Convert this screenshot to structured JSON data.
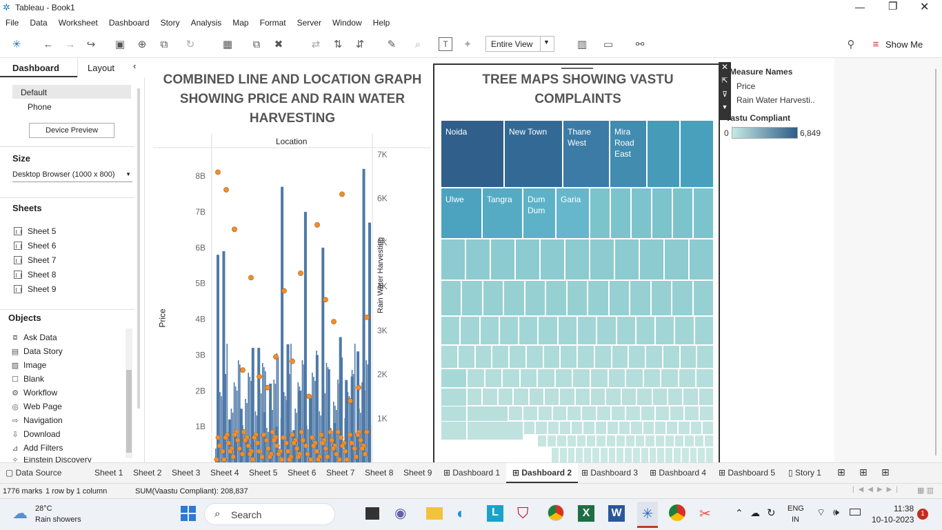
{
  "window": {
    "title": "Tableau - Book1"
  },
  "menu": [
    "File",
    "Data",
    "Worksheet",
    "Dashboard",
    "Story",
    "Analysis",
    "Map",
    "Format",
    "Server",
    "Window",
    "Help"
  ],
  "toolbar": {
    "view_mode": "Entire View",
    "show_me": "Show Me"
  },
  "left_pane": {
    "tabs": [
      "Dashboard",
      "Layout"
    ],
    "device_options": [
      "Default",
      "Phone"
    ],
    "device_preview_button": "Device Preview",
    "size_heading": "Size",
    "size_value": "Desktop Browser (1000 x 800)",
    "sheets_heading": "Sheets",
    "sheets": [
      "Sheet 5",
      "Sheet 6",
      "Sheet 7",
      "Sheet 8",
      "Sheet 9"
    ],
    "objects_heading": "Objects",
    "objects": [
      "Ask Data",
      "Data Story",
      "Image",
      "Blank",
      "Workflow",
      "Web Page",
      "Navigation",
      "Download",
      "Add Filters",
      "Einstein Discovery"
    ]
  },
  "chart_left": {
    "title": "COMBINED LINE AND LOCATION GRAPH SHOWING PRICE AND RAIN WATER HARVESTING",
    "column_header": "Location",
    "y_left_label": "Price",
    "y_right_label": "Rain Water Harvesting",
    "y_left_ticks": [
      "8B",
      "7B",
      "6B",
      "5B",
      "4B",
      "3B",
      "2B",
      "1B"
    ],
    "y_right_ticks": [
      "7K",
      "6K",
      "5K",
      "4K",
      "3K",
      "2K",
      "1K"
    ]
  },
  "chart_data": {
    "type": "bar",
    "title": "COMBINED LINE AND LOCATION GRAPH SHOWING PRICE AND RAIN WATER HARVESTING",
    "xlabel": "Location",
    "ylabel": "Price",
    "y2label": "Rain Water Harvesting",
    "ylim": [
      0,
      8600000000
    ],
    "y2lim": [
      0,
      7000
    ],
    "series": [
      {
        "name": "Price",
        "type": "bar",
        "color": "#4e79a7",
        "values": [
          5.8,
          5.9,
          1.2,
          0.8,
          1.5,
          0.7,
          3.2,
          3.2,
          1.4,
          2.2,
          1.0,
          7.7,
          3.3,
          0.9,
          2.0,
          7.0,
          1.8,
          3.0,
          6.0,
          2.6,
          1.1,
          3.5,
          2.3,
          2.4,
          3.1,
          8.2,
          6.7
        ]
      },
      {
        "name": "Rain Water Harvesting",
        "type": "scatter",
        "color": "#f28e2b",
        "values": [
          6600,
          6100,
          1500,
          2400,
          2100,
          3300,
          3200,
          4300,
          1700,
          5300,
          1700,
          3700,
          2300,
          1950,
          6200,
          1400,
          5400,
          3900,
          4200
        ]
      }
    ]
  },
  "chart_right": {
    "title": "TREE MAPS SHOWING VASTU COMPLAINTS",
    "labels": [
      "Noida",
      "New Town",
      "Thane West",
      "Mira Road East",
      "Ulwe",
      "Tangra",
      "Dum Dum",
      "Garia"
    ]
  },
  "legend": {
    "measure_names_title": "Measure Names",
    "measure_names": [
      "Price",
      "Rain Water Harvesti.."
    ],
    "color_title": "Vastu Compliant",
    "min": "0",
    "max": "6,849"
  },
  "sheet_tabs": {
    "data_source": "Data Source",
    "tabs": [
      "Sheet 1",
      "Sheet 2",
      "Sheet 3",
      "Sheet 4",
      "Sheet 5",
      "Sheet 6",
      "Sheet 7",
      "Sheet 8",
      "Sheet 9"
    ],
    "dashboards": [
      "Dashboard 1",
      "Dashboard 2",
      "Dashboard 3",
      "Dashboard 4",
      "Dashboard 5"
    ],
    "story": "Story 1"
  },
  "status": {
    "marks": "1776 marks",
    "rows": "1 row by 1 column",
    "sum": "SUM(Vaastu Compliant): 208,837"
  },
  "taskbar": {
    "weather_temp": "28°C",
    "weather_desc": "Rain showers",
    "search": "Search",
    "lang1": "ENG",
    "lang2": "IN",
    "time": "11:38",
    "date": "10-10-2023",
    "notifications": "1"
  }
}
